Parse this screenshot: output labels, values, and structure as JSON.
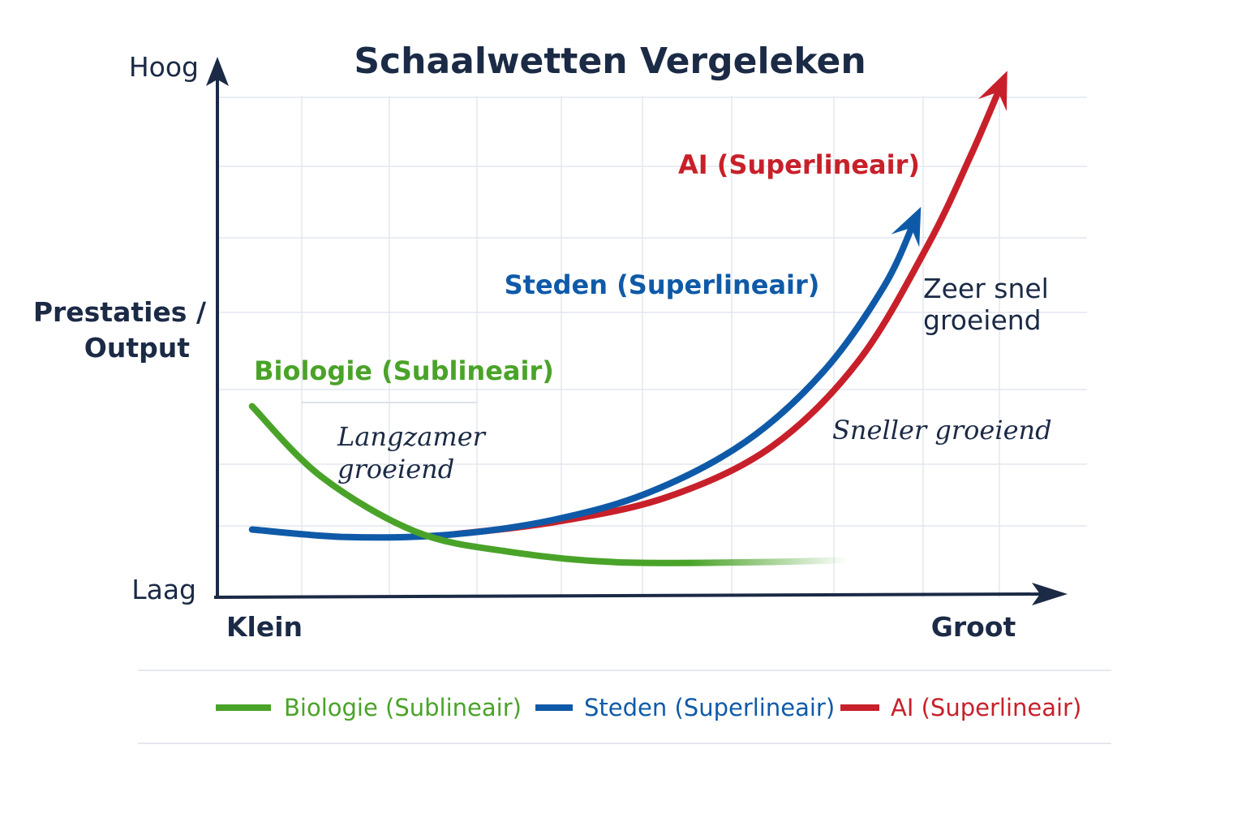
{
  "chart_data": {
    "type": "line",
    "title": "Schaalwetten Vergeleken",
    "ylabel_line1": "Prestaties /",
    "ylabel_line2": "Output",
    "y_top_label": "Hoog",
    "y_bottom_label": "Laag",
    "x_left_label": "Klein",
    "x_right_label": "Groot",
    "xlim": [
      0,
      10
    ],
    "ylim": [
      0,
      10
    ],
    "grid": true,
    "legend_position": "bottom",
    "series": [
      {
        "name": "Biologie (Sublineair)",
        "color": "#4aa329",
        "points": [
          [
            0.4,
            3.7
          ],
          [
            1.2,
            2.3
          ],
          [
            2.3,
            1.2
          ],
          [
            3.4,
            0.8
          ],
          [
            4.6,
            0.6
          ],
          [
            6.2,
            0.6
          ],
          [
            7.4,
            0.65
          ]
        ]
      },
      {
        "name": "Steden (Superlineair)",
        "color": "#0f5aa8",
        "points": [
          [
            0.4,
            1.25
          ],
          [
            1.5,
            1.1
          ],
          [
            2.7,
            1.15
          ],
          [
            3.9,
            1.45
          ],
          [
            5.0,
            2.0
          ],
          [
            6.1,
            3.0
          ],
          [
            7.0,
            4.4
          ],
          [
            7.7,
            6.1
          ],
          [
            8.05,
            7.4
          ]
        ]
      },
      {
        "name": "AI (Superlineair)",
        "color": "#c8202a",
        "points": [
          [
            2.7,
            1.15
          ],
          [
            3.9,
            1.4
          ],
          [
            5.2,
            1.9
          ],
          [
            6.4,
            2.9
          ],
          [
            7.4,
            4.6
          ],
          [
            8.2,
            6.9
          ],
          [
            8.7,
            8.7
          ],
          [
            9.05,
            10.1
          ]
        ]
      }
    ],
    "annotations": {
      "biology_label": "Biologie (Sublineair)",
      "biology_note_line1": "Langzamer",
      "biology_note_line2": "groeiend",
      "cities_label": "Steden (Superlineair)",
      "ai_label": "AI (Superlineair)",
      "ai_note1_line1": "Zeer snel",
      "ai_note1_line2": "groeiend",
      "ai_note2": "Sneller groeiend"
    },
    "legend": [
      {
        "label": "Biologie (Sublineair)",
        "color": "#4aa329"
      },
      {
        "label": "Steden (Superlineair)",
        "color": "#0f5aa8"
      },
      {
        "label": "AI (Superlineair)",
        "color": "#c8202a"
      }
    ]
  }
}
